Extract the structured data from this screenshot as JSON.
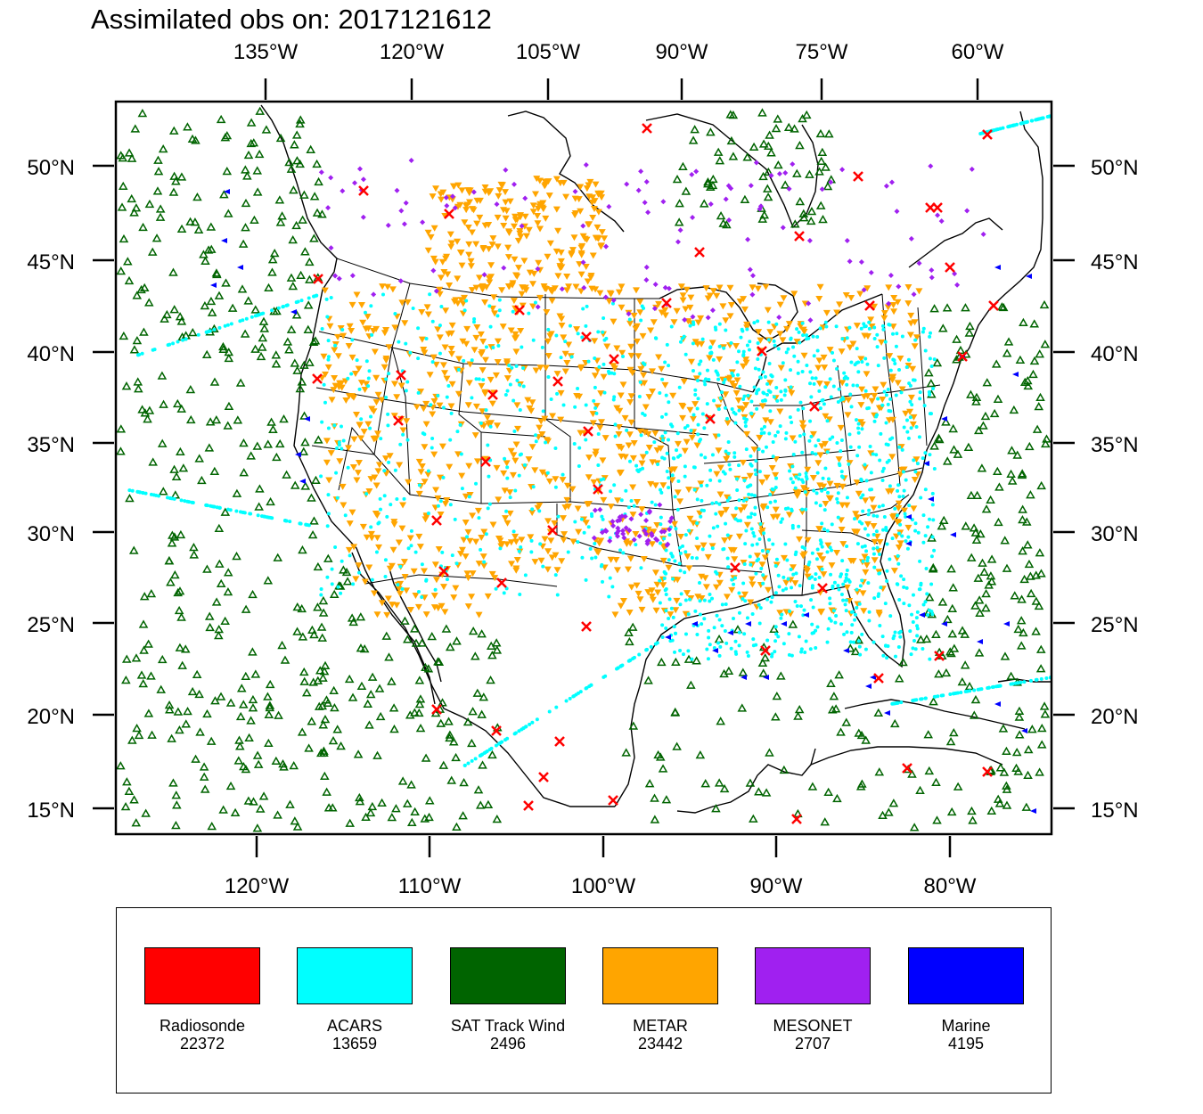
{
  "title": "Assimilated obs on: 2017121612",
  "map": {
    "top_lon_labels": [
      "135°W",
      "120°W",
      "105°W",
      "90°W",
      "75°W",
      "60°W"
    ],
    "bottom_lon_labels": [
      "120°W",
      "110°W",
      "100°W",
      "90°W",
      "80°W"
    ],
    "lat_labels": [
      "50°N",
      "45°N",
      "40°N",
      "35°N",
      "30°N",
      "25°N",
      "20°N",
      "15°N"
    ]
  },
  "legend": [
    {
      "name": "Radiosonde",
      "count": "22372",
      "color": "#ff0000",
      "marker": "x-cross"
    },
    {
      "name": "ACARS",
      "count": "13659",
      "color": "#00ffff",
      "marker": "dot"
    },
    {
      "name": "SAT Track Wind",
      "count": "2496",
      "color": "#006400",
      "marker": "triangle-up"
    },
    {
      "name": "METAR",
      "count": "23442",
      "color": "#ffa500",
      "marker": "triangle-down"
    },
    {
      "name": "MESONET",
      "count": "2707",
      "color": "#a020f0",
      "marker": "diamond"
    },
    {
      "name": "Marine",
      "count": "4195",
      "color": "#0000ff",
      "marker": "triangle-left"
    }
  ]
}
